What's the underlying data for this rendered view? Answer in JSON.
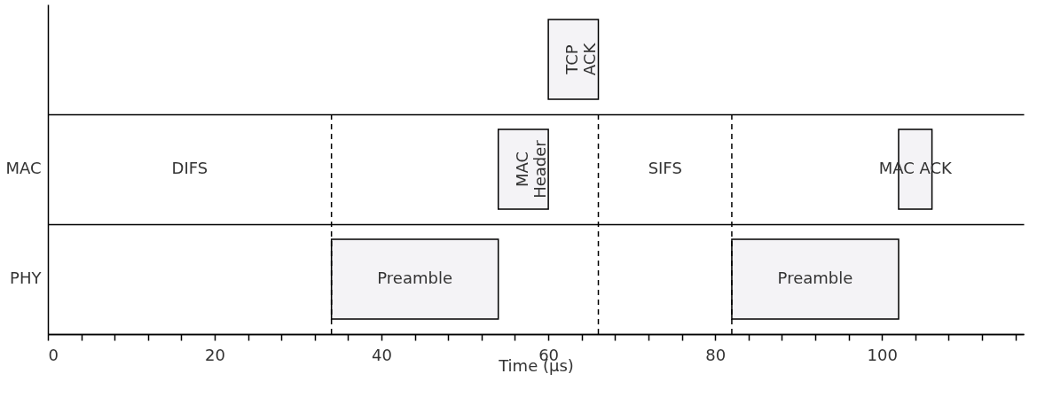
{
  "chart_data": {
    "type": "bar",
    "orientation": "horizontal",
    "xlabel": "Time (µs)",
    "categories": [
      null,
      "MAC",
      "PHY"
    ],
    "series": [
      {
        "name": "TCP\nACK",
        "color": "#f4f3f6",
        "values": [
          6,
          null,
          null
        ],
        "base": [
          60,
          null,
          null
        ]
      },
      {
        "name": "MAC\nHeader",
        "color": "#f4f3f6",
        "values": [
          null,
          6,
          null
        ],
        "base": [
          null,
          54,
          null
        ]
      },
      {
        "name": "MAC ACK",
        "color": "#f4f3f6",
        "values": [
          null,
          4,
          null
        ],
        "base": [
          null,
          102,
          null
        ]
      },
      {
        "name": "Preamble",
        "color": "#f4f3f6",
        "values": [
          null,
          null,
          20
        ],
        "base": [
          null,
          null,
          34
        ]
      },
      {
        "name": "Preamble",
        "color": "#f4f3f6",
        "values": [
          null,
          null,
          20
        ],
        "base": [
          null,
          null,
          82
        ]
      }
    ],
    "xlim": [
      0,
      117
    ],
    "xticks": [
      0,
      {
        "value": 4,
        "label": null
      },
      {
        "value": 8,
        "label": null
      },
      {
        "value": 12,
        "label": null
      },
      {
        "value": 16,
        "label": null
      },
      20,
      {
        "value": 24,
        "label": null
      },
      {
        "value": 28,
        "label": null
      },
      {
        "value": 32,
        "label": null
      },
      {
        "value": 36,
        "label": null
      },
      40,
      {
        "value": 44,
        "label": null
      },
      {
        "value": 48,
        "label": null
      },
      {
        "value": 52,
        "label": null
      },
      {
        "value": 56,
        "label": null
      },
      60,
      {
        "value": 64,
        "label": null
      },
      {
        "value": 68,
        "label": null
      },
      {
        "value": 72,
        "label": null
      },
      {
        "value": 76,
        "label": null
      },
      80,
      {
        "value": 84,
        "label": null
      },
      {
        "value": 88,
        "label": null
      },
      {
        "value": 92,
        "label": null
      },
      {
        "value": 96,
        "label": null
      },
      100,
      {
        "value": 104,
        "label": null
      },
      {
        "value": 108,
        "label": null
      },
      {
        "value": 112,
        "label": null
      },
      {
        "value": 116,
        "label": null
      }
    ],
    "ref_lines": [
      {
        "axis": "x",
        "value": 34,
        "line_style": "dashed",
        "color": "#000000"
      },
      {
        "axis": "x",
        "value": 66,
        "line_style": "dashed",
        "color": "#000000"
      },
      {
        "axis": "x",
        "value": 82,
        "line_style": "dashed",
        "color": "#000000"
      }
    ],
    "annotations": [
      "DIFS",
      "SIFS"
    ],
    "grid": "y"
  }
}
